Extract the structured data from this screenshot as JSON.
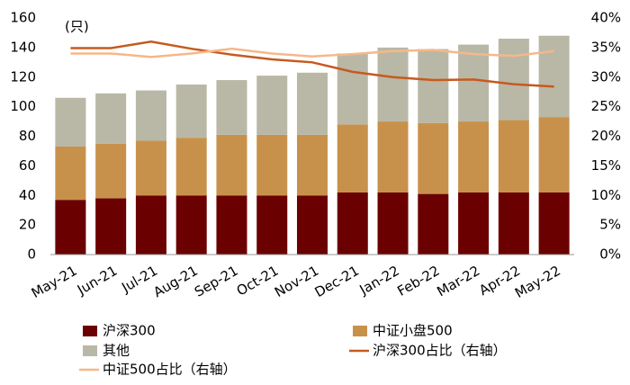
{
  "chart_data": {
    "type": "bar_line",
    "y_unit_label": "(只)",
    "categories": [
      "May-21",
      "Jun-21",
      "Jul-21",
      "Aug-21",
      "Sep-21",
      "Oct-21",
      "Nov-21",
      "Dec-21",
      "Jan-22",
      "Feb-22",
      "Mar-22",
      "Apr-22",
      "May-22"
    ],
    "series": [
      {
        "name": "沪深300",
        "type": "bar",
        "color": "#6b0000",
        "values": [
          37,
          38,
          40,
          40,
          40,
          40,
          40,
          42,
          42,
          41,
          42,
          42,
          42
        ]
      },
      {
        "name": "中证小盘500",
        "type": "bar",
        "color": "#c8914b",
        "values": [
          36,
          37,
          37,
          39,
          41,
          41,
          41,
          46,
          48,
          48,
          48,
          49,
          51
        ]
      },
      {
        "name": "其他",
        "type": "bar",
        "color": "#b9b8a6",
        "values": [
          33,
          34,
          34,
          36,
          37,
          40,
          42,
          48,
          50,
          50,
          52,
          55,
          55
        ]
      },
      {
        "name": "沪深300占比（右轴）",
        "type": "line",
        "axis": "y2",
        "color": "#c65a1e",
        "values": [
          34.9,
          34.9,
          36.0,
          34.8,
          33.8,
          33.0,
          32.5,
          30.9,
          30.0,
          29.5,
          29.6,
          28.8,
          28.4
        ]
      },
      {
        "name": "中证500占比（右轴）",
        "type": "line",
        "axis": "y2",
        "color": "#f5b88a",
        "values": [
          34.0,
          34.0,
          33.4,
          34.0,
          34.8,
          34.0,
          33.5,
          33.9,
          34.4,
          34.6,
          33.9,
          33.6,
          34.4
        ]
      }
    ],
    "ylim": [
      0,
      160
    ],
    "yticks": [
      0,
      20,
      40,
      60,
      80,
      100,
      120,
      140,
      160
    ],
    "y2lim": [
      0,
      40
    ],
    "y2ticks": [
      {
        "value": 0,
        "label": "0%"
      },
      {
        "value": 5,
        "label": "5%"
      },
      {
        "value": 10,
        "label": "10%"
      },
      {
        "value": 15,
        "label": "15%"
      },
      {
        "value": 20,
        "label": "20%"
      },
      {
        "value": 25,
        "label": "25%"
      },
      {
        "value": 30,
        "label": "30%"
      },
      {
        "value": 35,
        "label": "35%"
      },
      {
        "value": 40,
        "label": "40%"
      }
    ]
  }
}
